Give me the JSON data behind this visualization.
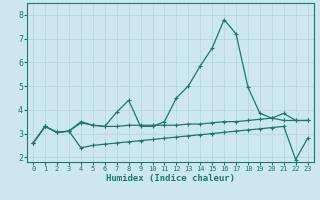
{
  "xlabel": "Humidex (Indice chaleur)",
  "xlim": [
    -0.5,
    23.5
  ],
  "ylim": [
    1.8,
    8.5
  ],
  "xticks": [
    0,
    1,
    2,
    3,
    4,
    5,
    6,
    7,
    8,
    9,
    10,
    11,
    12,
    13,
    14,
    15,
    16,
    17,
    18,
    19,
    20,
    21,
    22,
    23
  ],
  "yticks": [
    2,
    3,
    4,
    5,
    6,
    7,
    8
  ],
  "bg_color": "#cce8ec",
  "line_color": "#1a7870",
  "grid_color": "#b8d8dc",
  "line1_x": [
    0,
    1,
    2,
    3,
    4,
    5,
    6,
    7,
    8,
    9,
    10,
    11,
    12,
    13,
    14,
    15,
    16,
    17,
    18,
    19,
    20,
    21,
    22,
    23
  ],
  "line1_y": [
    2.6,
    3.3,
    3.05,
    3.1,
    3.45,
    3.35,
    3.3,
    3.9,
    4.4,
    3.3,
    3.3,
    3.5,
    4.5,
    5.0,
    5.85,
    6.6,
    7.8,
    7.2,
    4.95,
    3.85,
    3.65,
    3.55,
    3.55,
    3.55
  ],
  "line2_x": [
    0,
    1,
    2,
    3,
    4,
    5,
    6,
    7,
    8,
    9,
    10,
    11,
    12,
    13,
    14,
    15,
    16,
    17,
    18,
    19,
    20,
    21,
    22,
    23
  ],
  "line2_y": [
    2.6,
    3.3,
    3.05,
    3.1,
    3.5,
    3.35,
    3.3,
    3.3,
    3.35,
    3.35,
    3.35,
    3.35,
    3.35,
    3.4,
    3.4,
    3.45,
    3.5,
    3.5,
    3.55,
    3.6,
    3.65,
    3.85,
    3.55,
    3.55
  ],
  "line3_x": [
    0,
    1,
    2,
    3,
    4,
    5,
    6,
    7,
    8,
    9,
    10,
    11,
    12,
    13,
    14,
    15,
    16,
    17,
    18,
    19,
    20,
    21,
    22,
    23
  ],
  "line3_y": [
    2.6,
    3.3,
    3.05,
    3.1,
    2.4,
    2.5,
    2.55,
    2.6,
    2.65,
    2.7,
    2.75,
    2.8,
    2.85,
    2.9,
    2.95,
    3.0,
    3.05,
    3.1,
    3.15,
    3.2,
    3.25,
    3.3,
    1.9,
    2.8
  ]
}
